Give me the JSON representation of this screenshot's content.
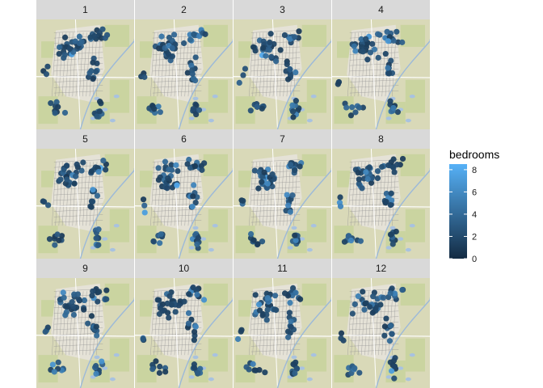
{
  "chart_data": {
    "type": "scatter",
    "subtype": "faceted-map",
    "facet_variable": "month",
    "facets": [
      "1",
      "2",
      "3",
      "4",
      "5",
      "6",
      "7",
      "8",
      "9",
      "10",
      "11",
      "12"
    ],
    "facet_layout": {
      "cols": 4,
      "rows": 3
    },
    "basemap": "terrain street map",
    "color_scale": {
      "variable": "bedrooms",
      "title": "bedrooms",
      "type": "continuous",
      "low_color": "#132B43",
      "high_color": "#56B1F7",
      "range": [
        0,
        8.5
      ],
      "breaks": [
        0,
        2,
        4,
        6,
        8
      ],
      "break_labels": [
        "0",
        "2",
        "4",
        "6",
        "8"
      ]
    },
    "legend_position": "right",
    "xlabel": "",
    "ylabel": ""
  }
}
